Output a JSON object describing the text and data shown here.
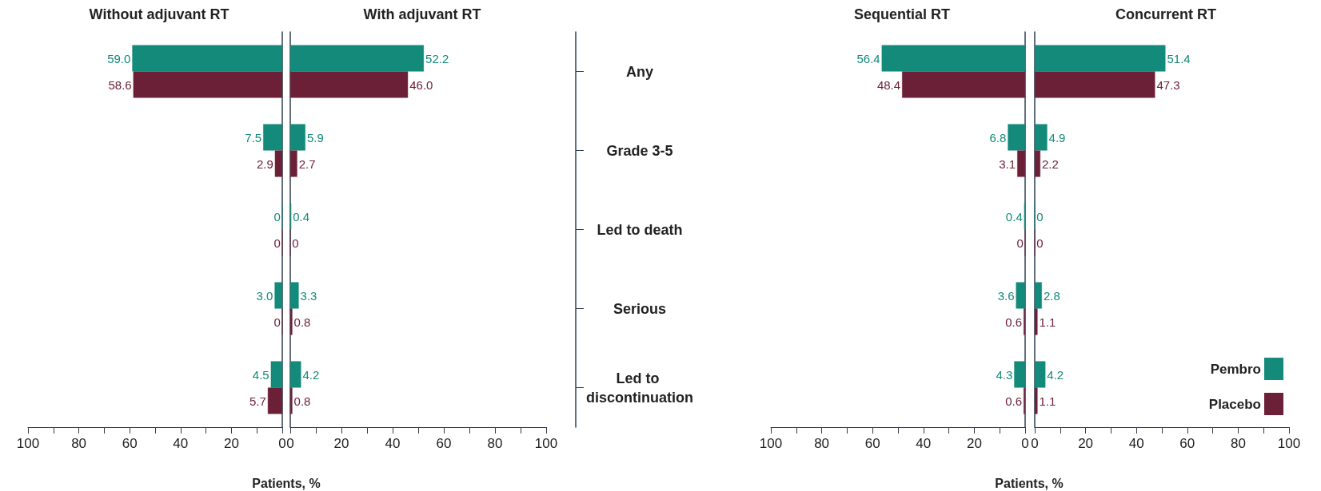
{
  "chart_data": [
    {
      "type": "bar",
      "orientation": "horizontal",
      "title": "Without adjuvant RT",
      "xlabel": "Patients, %",
      "categories": [
        "Any",
        "Grade 3-5",
        "Led to death",
        "Serious",
        "Led to discontinuation"
      ],
      "tick_labels": "x",
      "xlim": [
        100,
        0
      ],
      "xticks": [
        100,
        {
          "value": 90,
          "label": null
        },
        80,
        {
          "value": 70,
          "label": null
        },
        60,
        {
          "value": 50,
          "label": null
        },
        40,
        {
          "value": 30,
          "label": null
        },
        20,
        {
          "value": 10,
          "label": null
        },
        0
      ],
      "series": [
        {
          "color": "#138a7a",
          "values": [
            59.0,
            7.5,
            0,
            3.0,
            4.5
          ],
          "value_labels": [
            "59.0",
            "7.5",
            "0",
            "3.0",
            "4.5"
          ]
        },
        {
          "color": "#6b2038",
          "values": [
            58.6,
            2.9,
            0,
            0,
            5.7
          ],
          "value_labels": [
            "58.6",
            "2.9",
            "0",
            "0",
            "5.7"
          ]
        }
      ]
    },
    {
      "type": "bar",
      "orientation": "horizontal",
      "title": "With adjuvant RT",
      "categories": [
        "Any",
        "Grade 3-5",
        "Led to death",
        "Serious",
        "Led to discontinuation"
      ],
      "xlim": [
        0,
        100
      ],
      "xticks": [
        0,
        {
          "value": 10,
          "label": null
        },
        20,
        {
          "value": 30,
          "label": null
        },
        40,
        {
          "value": 50,
          "label": null
        },
        60,
        {
          "value": 70,
          "label": null
        },
        80,
        {
          "value": 90,
          "label": null
        },
        100
      ],
      "series": [
        {
          "color": "#138a7a",
          "values": [
            52.2,
            5.9,
            0.4,
            3.3,
            4.2
          ],
          "value_labels": [
            "52.2",
            "5.9",
            "0.4",
            "3.3",
            "4.2"
          ]
        },
        {
          "color": "#6b2038",
          "values": [
            46.0,
            2.7,
            0,
            0.8,
            0.8
          ],
          "value_labels": [
            "46.0",
            "2.7",
            "0",
            "0.8",
            "0.8"
          ]
        }
      ]
    },
    {
      "type": "bar",
      "orientation": "horizontal",
      "title": "Sequential RT",
      "xlabel": "Patients, %",
      "categories": [
        "Any",
        "Grade 3-5",
        "Led to death",
        "Serious",
        "Led to discontinuation"
      ],
      "tick_labels": "x",
      "xlim": [
        100,
        0
      ],
      "xticks": [
        100,
        {
          "value": 90,
          "label": null
        },
        80,
        {
          "value": 70,
          "label": null
        },
        60,
        {
          "value": 50,
          "label": null
        },
        40,
        {
          "value": 30,
          "label": null
        },
        20,
        {
          "value": 10,
          "label": null
        },
        0
      ],
      "series": [
        {
          "color": "#138a7a",
          "values": [
            56.4,
            6.8,
            0.4,
            3.6,
            4.3
          ],
          "value_labels": [
            "56.4",
            "6.8",
            "0.4",
            "3.6",
            "4.3"
          ]
        },
        {
          "color": "#6b2038",
          "values": [
            48.4,
            3.1,
            0,
            0.6,
            0.6
          ],
          "value_labels": [
            "48.4",
            "3.1",
            "0",
            "0.6",
            "0.6"
          ]
        }
      ]
    },
    {
      "type": "bar",
      "orientation": "horizontal",
      "title": "Concurrent RT",
      "categories": [
        "Any",
        "Grade 3-5",
        "Led to death",
        "Serious",
        "Led to discontinuation"
      ],
      "tick_labels": "x",
      "legend": "bottom right",
      "xlim": [
        0,
        100
      ],
      "xticks": [
        0,
        {
          "value": 10,
          "label": null
        },
        20,
        {
          "value": 30,
          "label": null
        },
        40,
        {
          "value": 50,
          "label": null
        },
        60,
        {
          "value": 70,
          "label": null
        },
        80,
        {
          "value": 90,
          "label": null
        },
        100
      ],
      "series": [
        {
          "name": "Pembro",
          "color": "#138a7a",
          "values": [
            51.4,
            4.9,
            0,
            2.8,
            4.2
          ],
          "value_labels": [
            "51.4",
            "4.9",
            "0",
            "2.8",
            "4.2"
          ]
        },
        {
          "name": "Placebo",
          "color": "#6b2038",
          "values": [
            47.3,
            2.2,
            0,
            1.1,
            1.1
          ],
          "value_labels": [
            "47.3",
            "2.2",
            "0",
            "1.1",
            "1.1"
          ]
        }
      ]
    }
  ]
}
